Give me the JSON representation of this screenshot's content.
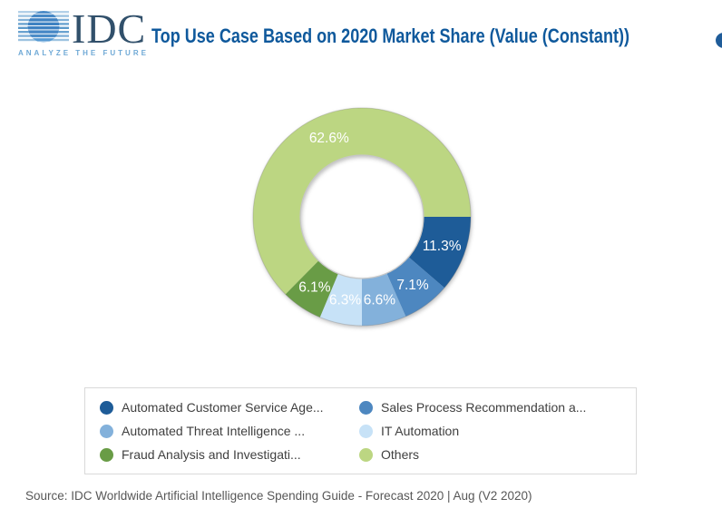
{
  "header": {
    "logo": {
      "text": "IDC",
      "tagline": "ANALYZE THE FUTURE"
    },
    "title": "Top Use Case Based on 2020 Market Share (Value (Constant))"
  },
  "chart_data": {
    "type": "pie",
    "subtype": "donut",
    "title": "Top Use Case Based on 2020 Market Share (Value (Constant))",
    "start_angle_deg": 0,
    "direction": "clockwise",
    "inner_radius_ratio": 0.57,
    "legend_position": "bottom",
    "series": [
      {
        "name": "Automated Customer Service Age...",
        "value": 11.3,
        "label": "11.3%",
        "color": "#1e5c98"
      },
      {
        "name": "Sales Process Recommendation a...",
        "value": 7.1,
        "label": "7.1%",
        "color": "#4d87c0"
      },
      {
        "name": "Automated Threat Intelligence ...",
        "value": 6.6,
        "label": "6.6%",
        "color": "#83b1db"
      },
      {
        "name": "IT Automation",
        "value": 6.3,
        "label": "6.3%",
        "color": "#c7e2f7"
      },
      {
        "name": "Fraud Analysis and Investigati...",
        "value": 6.1,
        "label": "6.1%",
        "color": "#699c46"
      },
      {
        "name": "Others",
        "value": 62.6,
        "label": "62.6%",
        "color": "#bcd682"
      }
    ]
  },
  "footer": {
    "source": "Source: IDC Worldwide Artificial Intelligence Spending Guide - Forecast 2020 | Aug (V2 2020)"
  },
  "colors": {
    "title_blue": "#0f599c",
    "legend_border": "#d9d9d9",
    "legend_text": "#404040",
    "source_gray": "#575757"
  }
}
